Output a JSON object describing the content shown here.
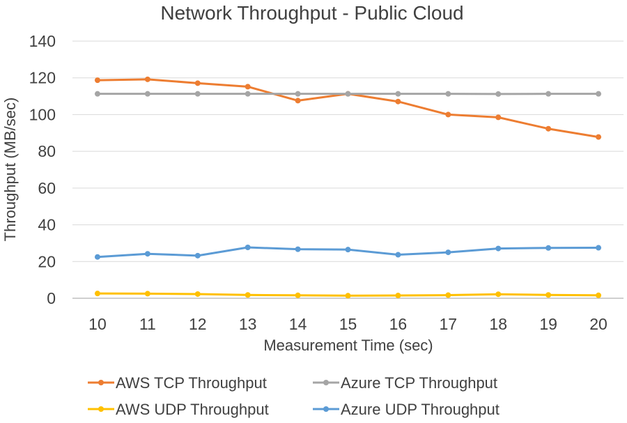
{
  "chart_data": {
    "type": "line",
    "title": "Network Throughput - Public Cloud",
    "xlabel": "Measurement Time (sec)",
    "ylabel": "Throughput (MB/sec)",
    "ylim": [
      0,
      140
    ],
    "yticks": [
      0,
      20,
      40,
      60,
      80,
      100,
      120,
      140
    ],
    "grid": true,
    "legend_position": "bottom",
    "categories": [
      "10",
      "11",
      "12",
      "13",
      "14",
      "15",
      "16",
      "17",
      "18",
      "19",
      "20"
    ],
    "series": [
      {
        "name": "AWS TCP Throughput",
        "color": "#ED7D31",
        "values": [
          118.7,
          119.2,
          117.1,
          115.2,
          107.6,
          111.3,
          107.1,
          100.0,
          98.5,
          92.3,
          87.8
        ]
      },
      {
        "name": "Azure TCP Throughput",
        "color": "#A5A5A5",
        "values": [
          111.3,
          111.3,
          111.3,
          111.3,
          111.3,
          111.3,
          111.3,
          111.3,
          111.2,
          111.3,
          111.3
        ]
      },
      {
        "name": "AWS UDP Throughput",
        "color": "#FFC000",
        "values": [
          2.6,
          2.5,
          2.3,
          1.8,
          1.6,
          1.4,
          1.5,
          1.7,
          2.2,
          1.8,
          1.6
        ]
      },
      {
        "name": "Azure UDP Throughput",
        "color": "#5B9BD5",
        "values": [
          22.5,
          24.2,
          23.2,
          27.7,
          26.7,
          26.5,
          23.7,
          25.0,
          27.1,
          27.4,
          27.5
        ]
      }
    ]
  }
}
